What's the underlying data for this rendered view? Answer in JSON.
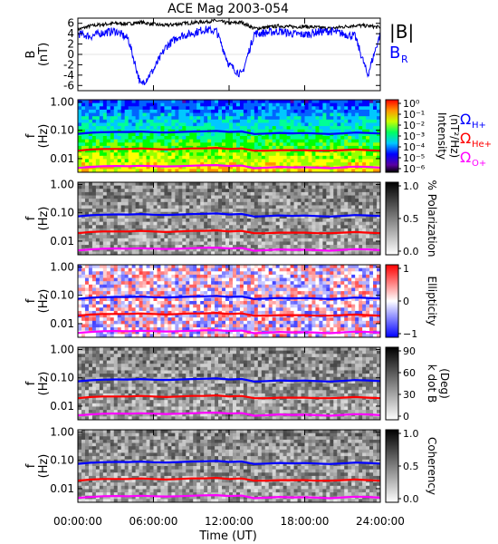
{
  "title": "ACE Mag 2003-054",
  "colors": {
    "bmag": "#000000",
    "br": "#0000ff",
    "h_plus": "#0000ff",
    "he_plus": "#ff0000",
    "o_plus": "#ff00ff"
  },
  "legend": {
    "bmag": "|B|",
    "br_main": "B",
    "br_sub": "R",
    "omega": "Ω",
    "h_plus": "H+",
    "he_plus": "He+",
    "o_plus": "O+"
  },
  "x_axis": {
    "label": "Time (UT)",
    "range_hours": [
      0,
      24
    ],
    "ticks": [
      {
        "value": 0,
        "label": "00:00:00"
      },
      {
        "value": 6,
        "label": "06:00:00"
      },
      {
        "value": 12,
        "label": "12:00:00"
      },
      {
        "value": 18,
        "label": "18:00:00"
      },
      {
        "value": 24,
        "label": "24:00:00"
      }
    ]
  },
  "chart_data": [
    {
      "type": "line",
      "ylabel_main": "B",
      "ylabel_unit": "(nT)",
      "ylim": [
        -7,
        7
      ],
      "y_ticks": [
        "6",
        "4",
        "2",
        "0",
        "-2",
        "-4",
        "-6"
      ],
      "y_tick_values": [
        6,
        4,
        2,
        0,
        -2,
        -4,
        -6
      ],
      "series": [
        {
          "key": "bmag",
          "x": [
            0,
            1,
            2,
            3,
            4,
            5,
            6,
            7,
            8,
            9,
            10,
            11,
            12,
            13,
            14,
            15,
            16,
            17,
            18,
            19,
            20,
            21,
            22,
            23,
            24
          ],
          "values": [
            4.8,
            5.5,
            5.8,
            6.0,
            5.9,
            6.2,
            5.8,
            5.6,
            5.9,
            6.1,
            6.3,
            6.5,
            6.0,
            6.2,
            5.0,
            5.2,
            5.5,
            5.3,
            5.4,
            5.2,
            5.0,
            5.3,
            5.6,
            5.5,
            5.2
          ]
        },
        {
          "key": "br",
          "x": [
            0,
            1,
            2,
            3,
            4,
            5,
            6,
            7,
            8,
            9,
            10,
            11,
            12,
            13,
            14,
            15,
            16,
            17,
            18,
            19,
            20,
            21,
            22,
            23,
            24
          ],
          "values": [
            4.0,
            3.5,
            4.2,
            4.5,
            3.0,
            -6.0,
            -3.0,
            1.5,
            3.5,
            4.0,
            4.8,
            4.5,
            -2.0,
            -4.0,
            4.0,
            4.2,
            4.5,
            4.0,
            3.8,
            4.3,
            4.5,
            4.0,
            3.5,
            -4.0,
            4.0
          ]
        }
      ]
    },
    {
      "type": "heatmap",
      "ylabel_main": "f",
      "ylabel_unit": "(Hz)",
      "y_ticks": [
        "1.00",
        "0.10",
        "0.01"
      ],
      "y_tick_values": [
        1.0,
        0.1,
        0.01
      ],
      "ylim": [
        0.0033,
        1.2
      ],
      "scale": "log",
      "colorbar": {
        "palette": "rainbow",
        "label": "Intensity",
        "unit": "(nT²/Hz)",
        "ticks": [
          "10⁰",
          "10⁻¹",
          "10⁻²",
          "10⁻³",
          "10⁻⁴",
          "10⁻⁵",
          "10⁻⁶"
        ],
        "show_omega_legend": true
      }
    },
    {
      "type": "heatmap",
      "ylabel_main": "f",
      "ylabel_unit": "(Hz)",
      "y_ticks": [
        "1.00",
        "0.10",
        "0.01"
      ],
      "y_tick_values": [
        1.0,
        0.1,
        0.01
      ],
      "ylim": [
        0.0033,
        1.2
      ],
      "scale": "log",
      "colorbar": {
        "palette": "gray",
        "label": "% Polarization",
        "unit": "",
        "ticks": [
          "1.0",
          "0.5",
          "0.0"
        ]
      }
    },
    {
      "type": "heatmap",
      "ylabel_main": "f",
      "ylabel_unit": "(Hz)",
      "y_ticks": [
        "1.00",
        "0.10",
        "0.01"
      ],
      "y_tick_values": [
        1.0,
        0.1,
        0.01
      ],
      "ylim": [
        0.0033,
        1.2
      ],
      "scale": "log",
      "colorbar": {
        "palette": "bwr",
        "label": "Ellipticity",
        "unit": "",
        "ticks": [
          "1",
          "0",
          "−1"
        ]
      }
    },
    {
      "type": "heatmap",
      "ylabel_main": "f",
      "ylabel_unit": "(Hz)",
      "y_ticks": [
        "1.00",
        "0.10",
        "0.01"
      ],
      "y_tick_values": [
        1.0,
        0.1,
        0.01
      ],
      "ylim": [
        0.0033,
        1.2
      ],
      "scale": "log",
      "colorbar": {
        "palette": "gray",
        "label": "k dot B",
        "unit": "(Deg)",
        "ticks": [
          "90",
          "60",
          "30",
          "0"
        ]
      }
    },
    {
      "type": "heatmap",
      "ylabel_main": "f",
      "ylabel_unit": "(Hz)",
      "y_ticks": [
        "1.00",
        "0.10",
        "0.01"
      ],
      "y_tick_values": [
        1.0,
        0.1,
        0.01
      ],
      "ylim": [
        0.0033,
        1.2
      ],
      "scale": "log",
      "colorbar": {
        "palette": "gray",
        "label": "Coherency",
        "unit": "",
        "ticks": [
          "1.0",
          "0.5",
          "0.0"
        ]
      }
    }
  ],
  "gyrofrequency_lines": {
    "x": [
      0,
      1,
      2,
      3,
      4,
      5,
      6,
      7,
      8,
      9,
      10,
      11,
      12,
      13,
      14,
      15,
      16,
      17,
      18,
      19,
      20,
      21,
      22,
      23,
      24
    ],
    "h_plus": [
      0.075,
      0.082,
      0.086,
      0.088,
      0.087,
      0.09,
      0.086,
      0.084,
      0.087,
      0.09,
      0.092,
      0.095,
      0.088,
      0.091,
      0.074,
      0.077,
      0.081,
      0.078,
      0.08,
      0.077,
      0.074,
      0.078,
      0.083,
      0.081,
      0.077
    ],
    "he_plus": [
      0.019,
      0.021,
      0.022,
      0.022,
      0.022,
      0.023,
      0.022,
      0.021,
      0.022,
      0.023,
      0.023,
      0.024,
      0.022,
      0.023,
      0.019,
      0.019,
      0.02,
      0.02,
      0.02,
      0.019,
      0.019,
      0.02,
      0.021,
      0.02,
      0.019
    ],
    "o_plus": [
      0.0047,
      0.0051,
      0.0054,
      0.0055,
      0.0054,
      0.0056,
      0.0054,
      0.0053,
      0.0054,
      0.0056,
      0.0058,
      0.0059,
      0.0055,
      0.0057,
      0.0046,
      0.0048,
      0.0051,
      0.0049,
      0.005,
      0.0048,
      0.0046,
      0.0049,
      0.0052,
      0.0051,
      0.0048
    ]
  }
}
